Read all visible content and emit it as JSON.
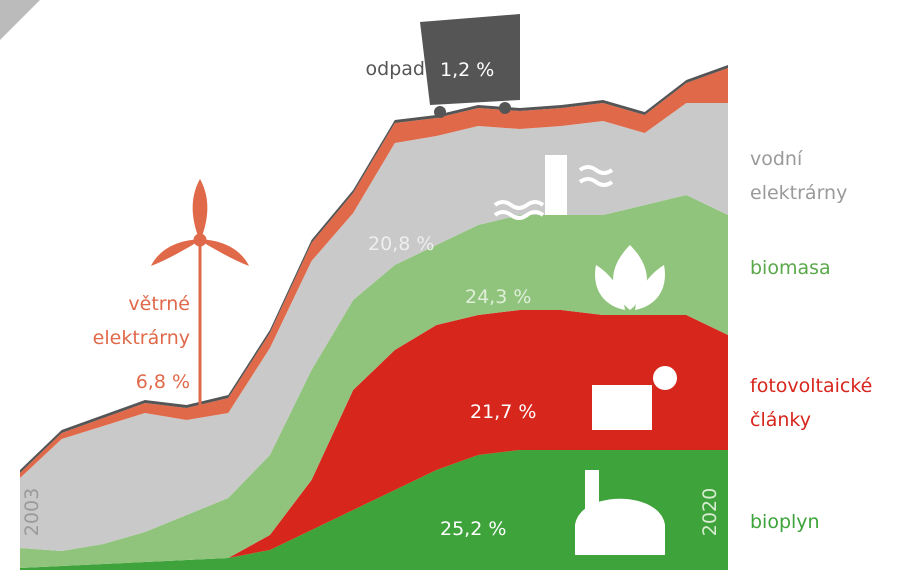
{
  "chart_data": {
    "type": "stacked_area",
    "categories": [
      "2003",
      null,
      null,
      null,
      null,
      null,
      null,
      null,
      null,
      null,
      null,
      null,
      null,
      null,
      null,
      null,
      null,
      "2020"
    ],
    "ylim": [
      0,
      570
    ],
    "series": [
      {
        "name": "bioplyn",
        "color": "#3ea33b",
        "label_color": "#3ea33b",
        "share": 25.2,
        "share_label": "25,2 %",
        "values": [
          2,
          4,
          6,
          8,
          10,
          12,
          20,
          40,
          60,
          80,
          100,
          115,
          120,
          120,
          120,
          120,
          120,
          120
        ]
      },
      {
        "name": "fotovoltaické články",
        "color": "#d7261c",
        "label_color": "#d7261c",
        "share": 21.7,
        "share_label": "21,7 %",
        "values": [
          0,
          0,
          0,
          0,
          0,
          0,
          15,
          50,
          120,
          140,
          145,
          140,
          140,
          140,
          135,
          135,
          135,
          115
        ]
      },
      {
        "name": "biomasa",
        "color": "#90c47d",
        "label_color": "#5aa84a",
        "share": 24.3,
        "share_label": "24,3 %",
        "values": [
          20,
          15,
          20,
          30,
          45,
          60,
          80,
          110,
          90,
          85,
          80,
          90,
          95,
          95,
          100,
          110,
          120,
          120
        ]
      },
      {
        "name": "vodní elektrárny",
        "color": "#c9c9c9",
        "label_color": "#9a9a9a",
        "share": 20.8,
        "share_label": "20,8 %",
        "values": [
          70,
          112,
          118,
          119,
          95,
          85,
          107,
          109,
          87,
          122,
          109,
          99,
          86,
          89,
          94,
          72,
          92,
          112
        ]
      },
      {
        "name": "větrné elektrárny",
        "color": "#e0694a",
        "label_color": "#e0694a",
        "share": 6.8,
        "share_label": "6,8 %",
        "values": [
          5,
          6,
          8,
          10,
          12,
          15,
          15,
          18,
          20,
          20,
          18,
          18,
          18,
          18,
          18,
          18,
          20,
          35
        ]
      },
      {
        "name": "odpad",
        "color": "#555555",
        "label_color": "#555555",
        "share": 1.2,
        "share_label": "1,2 %",
        "values": [
          3,
          3,
          3,
          3,
          3,
          3,
          3,
          3,
          3,
          3,
          3,
          3,
          3,
          3,
          3,
          3,
          3,
          3
        ]
      }
    ]
  }
}
